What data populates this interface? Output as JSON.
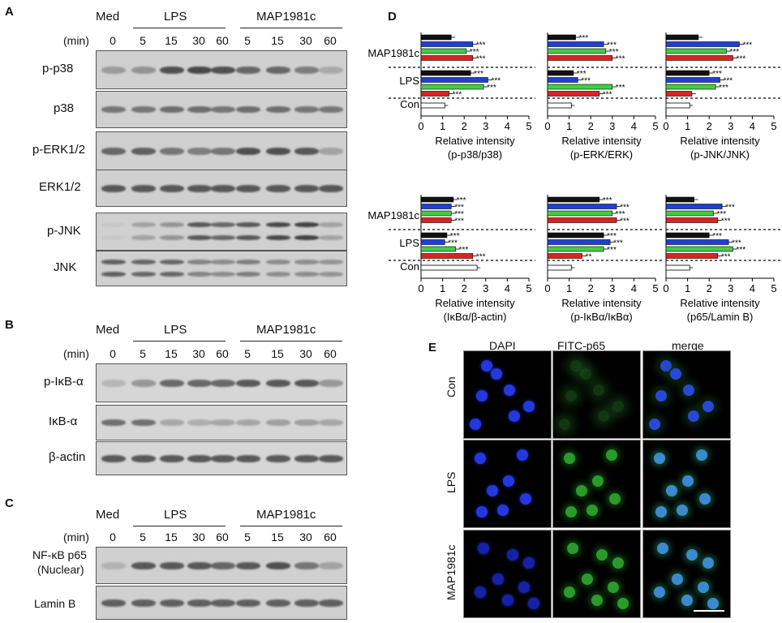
{
  "panel_letters": {
    "a": "A",
    "b": "B",
    "c": "C",
    "d": "D",
    "e": "E"
  },
  "blots": {
    "groups": {
      "med": "Med",
      "lps": "LPS",
      "map": "MAP1981c"
    },
    "min_label": "(min)",
    "times": [
      "0",
      "5",
      "15",
      "30",
      "60",
      "5",
      "15",
      "30",
      "60"
    ],
    "a_rows": [
      "p-p38",
      "p38",
      "p-ERK1/2",
      "ERK1/2",
      "p-JNK",
      "JNK"
    ],
    "b_rows": [
      "p-IκB-α",
      "IκB-α",
      "β-actin"
    ],
    "c_row1_line1": "NF-κB p65",
    "c_row1_line2": "(Nuclear)",
    "c_row2": "Lamin B"
  },
  "chart_data": [
    {
      "type": "bar",
      "categories": [
        "MAP1981c",
        "LPS",
        "Con"
      ],
      "xlabel": "Relative intensity",
      "xlabel2": "(p-p38/p38)",
      "xlim": [
        0,
        5
      ],
      "series": [
        {
          "values": [
            1.4,
            2.3,
            1.1
          ]
        },
        {
          "values": [
            2.4,
            3.1,
            null
          ]
        },
        {
          "values": [
            2.1,
            2.9,
            null
          ]
        },
        {
          "values": [
            2.4,
            1.3,
            null
          ]
        }
      ]
    },
    {
      "type": "bar",
      "categories": [
        "MAP1981c",
        "LPS",
        "Con"
      ],
      "xlabel": "Relative intensity",
      "xlabel2": "(p-ERK/ERK)",
      "xlim": [
        0,
        5
      ],
      "series": [
        {
          "values": [
            1.3,
            1.2,
            1.1
          ]
        },
        {
          "values": [
            2.6,
            1.4,
            null
          ]
        },
        {
          "values": [
            2.7,
            3.0,
            null
          ]
        },
        {
          "values": [
            3.0,
            2.4,
            null
          ]
        }
      ]
    },
    {
      "type": "bar",
      "categories": [
        "MAP1981c",
        "LPS",
        "Con"
      ],
      "xlabel": "Relative intensity",
      "xlabel2": "(p-JNK/JNK)",
      "xlim": [
        0,
        5
      ],
      "series": [
        {
          "values": [
            1.5,
            2.0,
            1.1
          ]
        },
        {
          "values": [
            3.4,
            2.5,
            null
          ]
        },
        {
          "values": [
            2.8,
            2.3,
            null
          ]
        },
        {
          "values": [
            3.1,
            1.2,
            null
          ]
        }
      ]
    },
    {
      "type": "bar",
      "categories": [
        "MAP1981c",
        "LPS",
        "Con"
      ],
      "xlabel": "Relative intensity",
      "xlabel2": "(IκBα/β-actin)",
      "xlim": [
        0,
        5
      ],
      "series": [
        {
          "values": [
            1.5,
            1.2,
            2.6
          ]
        },
        {
          "values": [
            1.4,
            1.1,
            null
          ]
        },
        {
          "values": [
            1.4,
            1.6,
            null
          ]
        },
        {
          "values": [
            1.4,
            2.4,
            null
          ]
        }
      ]
    },
    {
      "type": "bar",
      "categories": [
        "MAP1981c",
        "LPS",
        "Con"
      ],
      "xlabel": "Relative intensity",
      "xlabel2": "(p-IκBα/IκBα)",
      "xlim": [
        0,
        5
      ],
      "series": [
        {
          "values": [
            2.4,
            2.6,
            1.1
          ]
        },
        {
          "values": [
            3.2,
            2.9,
            null
          ]
        },
        {
          "values": [
            3.0,
            2.6,
            null
          ]
        },
        {
          "values": [
            3.2,
            1.6,
            null
          ]
        }
      ]
    },
    {
      "type": "bar",
      "categories": [
        "MAP1981c",
        "LPS",
        "Con"
      ],
      "xlabel": "Relative intensity",
      "xlabel2": "(p65/Lamin B)",
      "xlim": [
        0,
        5
      ],
      "series": [
        {
          "values": [
            1.3,
            2.0,
            1.1
          ]
        },
        {
          "values": [
            2.6,
            2.9,
            null
          ]
        },
        {
          "values": [
            2.2,
            3.1,
            null
          ]
        },
        {
          "values": [
            2.4,
            2.4,
            null
          ]
        }
      ]
    }
  ],
  "chart_style": {
    "series_colors": [
      "#111111",
      "#1f3fd6",
      "#44cc44",
      "#dd2222"
    ],
    "con_color": "#ffffff",
    "sig_label": "***",
    "lps_red_sig": [
      "***",
      "***",
      "",
      "***",
      "**",
      "***"
    ],
    "ticks": [
      "0",
      "1",
      "2",
      "3",
      "4",
      "5"
    ]
  },
  "micro": {
    "cols": [
      "DAPI",
      "FITC-p65",
      "merge"
    ],
    "rows": [
      "Con",
      "LPS",
      "MAP1981c"
    ]
  }
}
